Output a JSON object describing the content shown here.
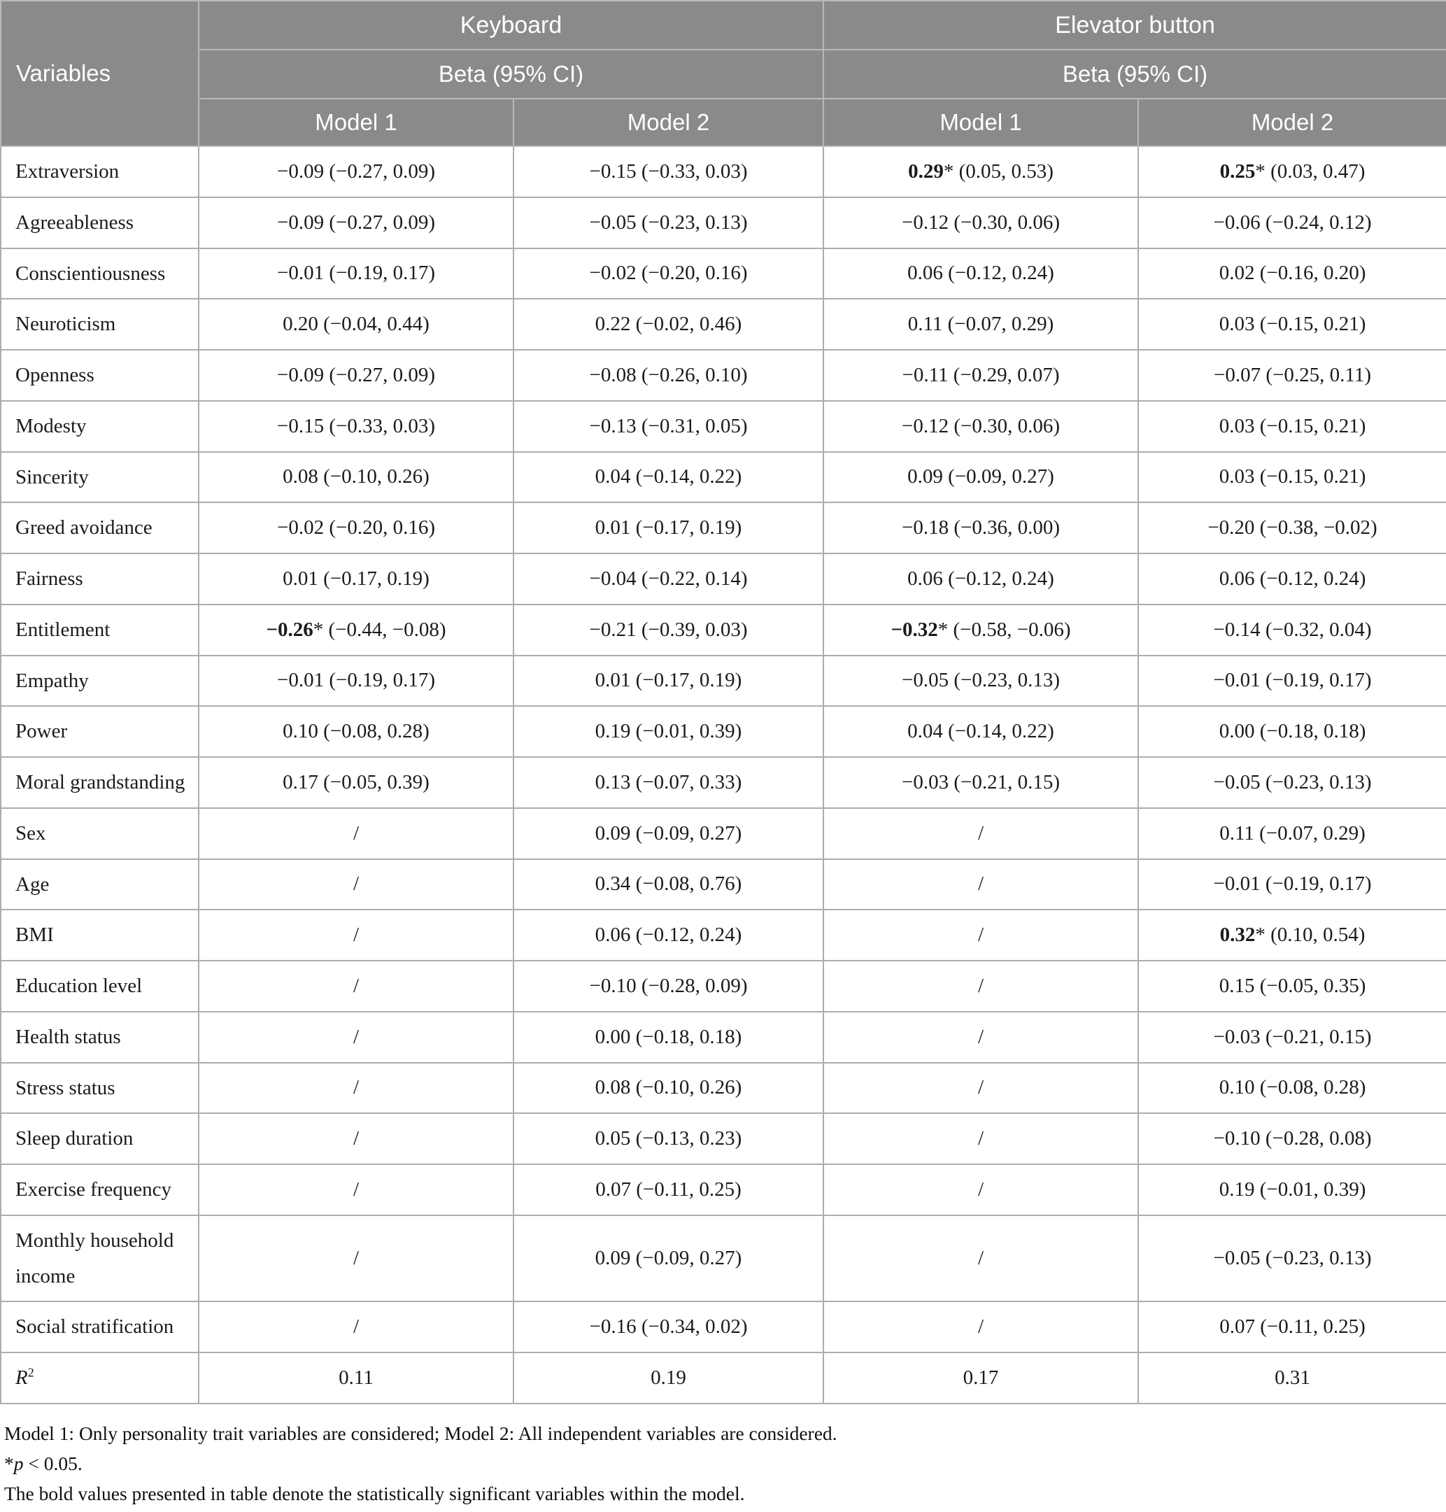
{
  "table": {
    "variables_label": "Variables",
    "group1": {
      "label": "Keyboard",
      "beta": "Beta (95% CI)",
      "model1": "Model 1",
      "model2": "Model 2"
    },
    "group2": {
      "label": "Elevator button",
      "beta": "Beta (95% CI)",
      "model1": "Model 1",
      "model2": "Model 2"
    },
    "header_bg_color": "#8a8a8a",
    "header_text_color": "#ffffff",
    "rows": [
      {
        "label": "Extraversion",
        "cells": [
          "−0.09 (−0.27, 0.09)",
          "−0.15 (−0.33, 0.03)",
          {
            "b": "0.29",
            "star": true,
            "rest": "(0.05, 0.53)"
          },
          {
            "b": "0.25",
            "star": true,
            "rest": "(0.03, 0.47)"
          }
        ]
      },
      {
        "label": "Agreeableness",
        "cells": [
          "−0.09 (−0.27, 0.09)",
          "−0.05 (−0.23, 0.13)",
          "−0.12 (−0.30, 0.06)",
          "−0.06 (−0.24, 0.12)"
        ]
      },
      {
        "label": "Conscientiousness",
        "cells": [
          "−0.01 (−0.19, 0.17)",
          "−0.02 (−0.20, 0.16)",
          "0.06 (−0.12, 0.24)",
          "0.02 (−0.16, 0.20)"
        ]
      },
      {
        "label": "Neuroticism",
        "cells": [
          "0.20 (−0.04, 0.44)",
          "0.22 (−0.02, 0.46)",
          "0.11 (−0.07, 0.29)",
          "0.03 (−0.15, 0.21)"
        ]
      },
      {
        "label": "Openness",
        "cells": [
          "−0.09 (−0.27, 0.09)",
          "−0.08 (−0.26, 0.10)",
          "−0.11 (−0.29, 0.07)",
          "−0.07 (−0.25, 0.11)"
        ]
      },
      {
        "label": "Modesty",
        "cells": [
          "−0.15 (−0.33, 0.03)",
          "−0.13 (−0.31, 0.05)",
          "−0.12 (−0.30, 0.06)",
          "0.03 (−0.15, 0.21)"
        ]
      },
      {
        "label": "Sincerity",
        "cells": [
          "0.08 (−0.10, 0.26)",
          "0.04 (−0.14, 0.22)",
          "0.09 (−0.09, 0.27)",
          "0.03 (−0.15, 0.21)"
        ]
      },
      {
        "label": "Greed avoidance",
        "cells": [
          "−0.02 (−0.20, 0.16)",
          "0.01 (−0.17, 0.19)",
          "−0.18 (−0.36, 0.00)",
          "−0.20 (−0.38, −0.02)"
        ]
      },
      {
        "label": "Fairness",
        "cells": [
          "0.01 (−0.17, 0.19)",
          "−0.04 (−0.22, 0.14)",
          "0.06 (−0.12, 0.24)",
          "0.06 (−0.12, 0.24)"
        ]
      },
      {
        "label": "Entitlement",
        "cells": [
          {
            "b": "−0.26",
            "star": true,
            "rest": "(−0.44, −0.08)"
          },
          "−0.21 (−0.39, 0.03)",
          {
            "b": "−0.32",
            "star": true,
            "rest": "(−0.58, −0.06)"
          },
          "−0.14 (−0.32, 0.04)"
        ]
      },
      {
        "label": "Empathy",
        "cells": [
          "−0.01 (−0.19, 0.17)",
          "0.01 (−0.17, 0.19)",
          "−0.05 (−0.23, 0.13)",
          "−0.01 (−0.19, 0.17)"
        ]
      },
      {
        "label": "Power",
        "cells": [
          "0.10 (−0.08, 0.28)",
          "0.19 (−0.01, 0.39)",
          "0.04 (−0.14, 0.22)",
          "0.00 (−0.18, 0.18)"
        ]
      },
      {
        "label": "Moral grandstanding",
        "cells": [
          "0.17 (−0.05, 0.39)",
          "0.13 (−0.07, 0.33)",
          "−0.03 (−0.21, 0.15)",
          "−0.05 (−0.23, 0.13)"
        ]
      },
      {
        "label": "Sex",
        "cells": [
          "/",
          "0.09 (−0.09, 0.27)",
          "/",
          "0.11 (−0.07, 0.29)"
        ]
      },
      {
        "label": "Age",
        "cells": [
          "/",
          "0.34 (−0.08, 0.76)",
          "/",
          "−0.01 (−0.19, 0.17)"
        ]
      },
      {
        "label": "BMI",
        "cells": [
          "/",
          "0.06 (−0.12, 0.24)",
          "/",
          {
            "b": "0.32",
            "star": true,
            "rest": "(0.10, 0.54)"
          }
        ]
      },
      {
        "label": "Education level",
        "cells": [
          "/",
          "−0.10 (−0.28, 0.09)",
          "/",
          "0.15 (−0.05, 0.35)"
        ]
      },
      {
        "label": "Health status",
        "cells": [
          "/",
          "0.00 (−0.18, 0.18)",
          "/",
          "−0.03 (−0.21, 0.15)"
        ]
      },
      {
        "label": "Stress status",
        "cells": [
          "/",
          "0.08 (−0.10, 0.26)",
          "/",
          "0.10 (−0.08, 0.28)"
        ]
      },
      {
        "label": "Sleep duration",
        "cells": [
          "/",
          "0.05 (−0.13, 0.23)",
          "/",
          "−0.10 (−0.28, 0.08)"
        ]
      },
      {
        "label": "Exercise frequency",
        "cells": [
          "/",
          "0.07 (−0.11, 0.25)",
          "/",
          "0.19 (−0.01, 0.39)"
        ]
      },
      {
        "label": "Monthly household income",
        "cells": [
          "/",
          "0.09 (−0.09, 0.27)",
          "/",
          "−0.05 (−0.23, 0.13)"
        ]
      },
      {
        "label": "Social stratification",
        "cells": [
          "/",
          "−0.16 (−0.34, 0.02)",
          "/",
          "0.07 (−0.11, 0.25)"
        ]
      },
      {
        "label": "R",
        "label_sup": "2",
        "label_italic": true,
        "cells": [
          "0.11",
          "0.19",
          "0.17",
          "0.31"
        ]
      }
    ]
  },
  "footnotes": {
    "line1": "Model 1: Only personality trait variables are considered; Model 2: All independent variables are considered.",
    "sig": {
      "star": "*",
      "p": "p",
      "rest": " < 0.05."
    },
    "line3": "The bold values presented in table denote the statistically significant variables within the model."
  }
}
